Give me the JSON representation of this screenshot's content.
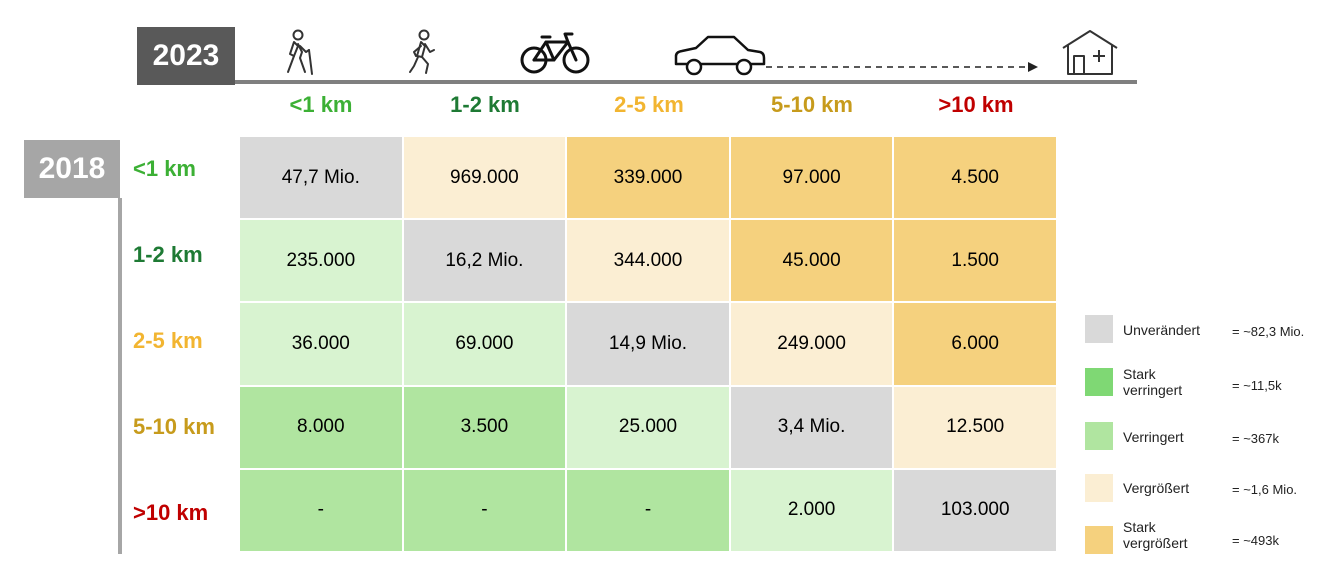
{
  "chart_data": {
    "type": "heatmap",
    "col_header_label": "2023",
    "row_header_label": "2018",
    "columns": [
      "<1 km",
      "1-2 km",
      "2-5 km",
      "5-10 km",
      ">10 km"
    ],
    "rows": [
      "<1 km",
      "1-2 km",
      "2-5 km",
      "5-10 km",
      ">10 km"
    ],
    "values": [
      [
        "47,7 Mio.",
        "969.000",
        "339.000",
        "97.000",
        "4.500"
      ],
      [
        "235.000",
        "16,2 Mio.",
        "344.000",
        "45.000",
        "1.500"
      ],
      [
        "36.000",
        "69.000",
        "14,9 Mio.",
        "249.000",
        "6.000"
      ],
      [
        "8.000",
        "3.500",
        "25.000",
        "3,4 Mio.",
        "12.500"
      ],
      [
        "-",
        "-",
        "-",
        "2.000",
        "103.000"
      ]
    ],
    "categories_grid": [
      [
        "u",
        "vg",
        "svg",
        "svg",
        "svg"
      ],
      [
        "vr",
        "u",
        "vg",
        "svg",
        "svg"
      ],
      [
        "vr",
        "vr",
        "u",
        "vg",
        "svg"
      ],
      [
        "svr",
        "svr",
        "vr",
        "u",
        "vg"
      ],
      [
        "svr",
        "svr",
        "svr",
        "vr",
        "u"
      ]
    ],
    "legend": [
      {
        "key": "u",
        "label": "Unverändert",
        "total": "= ~82,3 Mio."
      },
      {
        "key": "svr",
        "label": "Stark verringert",
        "total": "= ~11,5k"
      },
      {
        "key": "vr",
        "label": "Verringert",
        "total": "= ~367k"
      },
      {
        "key": "vg",
        "label": "Vergrößert",
        "total": "= ~1,6 Mio."
      },
      {
        "key": "svg",
        "label": "Stark vergrößert",
        "total": "= ~493k"
      }
    ]
  },
  "colors": {
    "u": "#d9d9d9",
    "svr": "#b0e5a0",
    "vr": "#d8f3d0",
    "vg": "#fbeed3",
    "svg": "#f5d17e",
    "legend_svr": "#7fd874",
    "head_lt1": "#3cb035",
    "head_1_2": "#1e7a34",
    "head_2_5": "#f2b531",
    "head_5_10": "#c79b1c",
    "head_gt10": "#c00000"
  },
  "icons": [
    "hiker-icon",
    "walker-icon",
    "bicycle-icon",
    "car-icon",
    "house-icon"
  ]
}
